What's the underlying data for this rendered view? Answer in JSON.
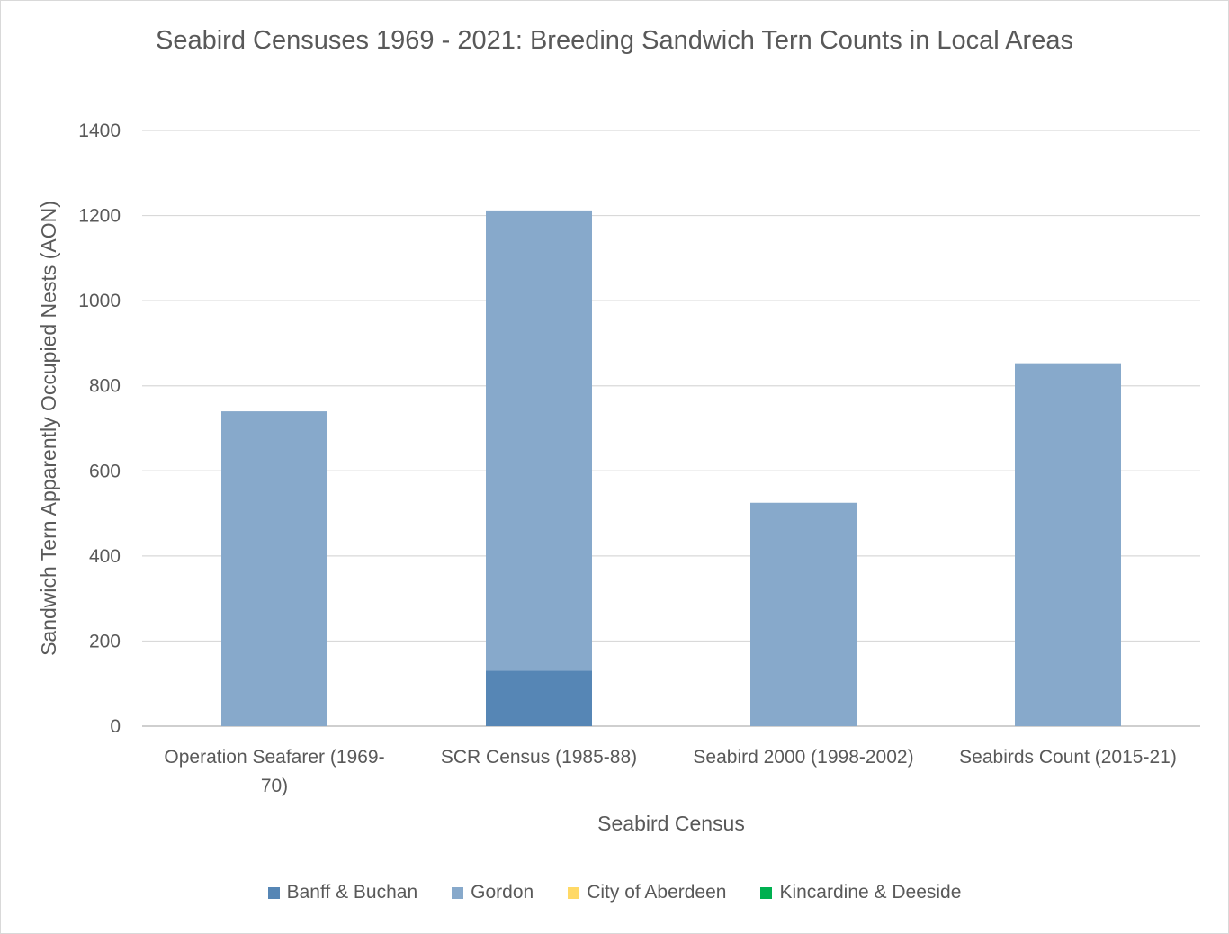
{
  "chart_data": {
    "type": "bar",
    "stacked": true,
    "title": "Seabird Censuses 1969 - 2021: Breeding Sandwich Tern Counts in Local Areas",
    "xlabel": "Seabird Census",
    "ylabel": "Sandwich Tern Apparently Occupied Nests (AON)",
    "ylim": [
      0,
      1400
    ],
    "yticks": [
      "0",
      "200",
      "400",
      "600",
      "800",
      "1000",
      "1200",
      "1400"
    ],
    "grid": true,
    "legend_position": "bottom",
    "categories": [
      [
        "Operation Seafarer (1969-",
        "70)"
      ],
      [
        "SCR Census (1985-88)"
      ],
      [
        "Seabird 2000 (1998-2002)"
      ],
      [
        "Seabirds Count (2015-21)"
      ]
    ],
    "series": [
      {
        "name": "Banff & Buchan",
        "color": "#5686b5",
        "values": [
          0,
          130,
          0,
          0
        ]
      },
      {
        "name": "Gordon",
        "color": "#87a9cb",
        "values": [
          740,
          1082,
          525,
          853
        ]
      },
      {
        "name": "City of Aberdeen",
        "color": "#ffd966",
        "values": [
          0,
          0,
          0,
          0
        ]
      },
      {
        "name": "Kincardine & Deeside",
        "color": "#00b050",
        "values": [
          0,
          0,
          0,
          0
        ]
      }
    ]
  }
}
